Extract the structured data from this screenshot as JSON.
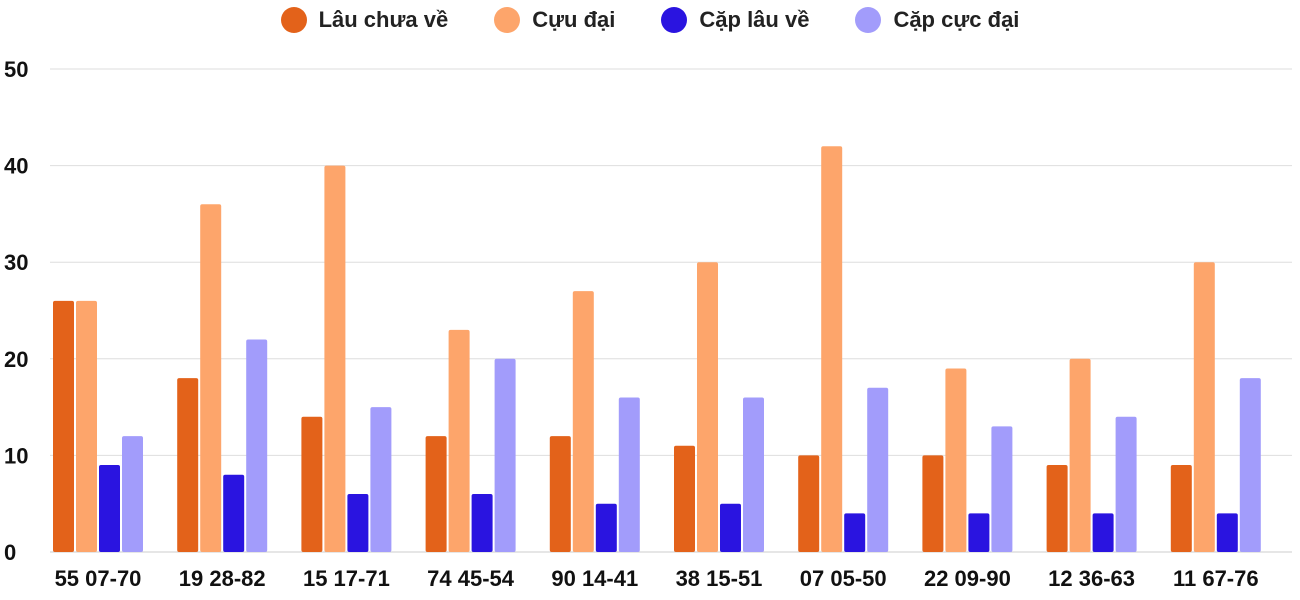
{
  "chart_data": {
    "type": "bar",
    "title": "",
    "xlabel": "",
    "ylabel": "",
    "ylim": [
      0,
      50
    ],
    "yticks": [
      0,
      10,
      20,
      30,
      40,
      50
    ],
    "grid": true,
    "legend_position": "top",
    "categories": [
      "55 07-70",
      "19 28-82",
      "15 17-71",
      "74 45-54",
      "90 14-41",
      "38 15-51",
      "07 05-50",
      "22 09-90",
      "12 36-63",
      "11 67-76"
    ],
    "series": [
      {
        "name": "Lâu chưa về",
        "color": "#e3621a",
        "values": [
          26,
          18,
          14,
          12,
          12,
          11,
          10,
          10,
          9,
          9
        ]
      },
      {
        "name": "Cựu đại",
        "color": "#fda56b",
        "values": [
          26,
          36,
          40,
          23,
          27,
          30,
          42,
          19,
          20,
          30
        ]
      },
      {
        "name": "Cặp lâu về",
        "color": "#2a14e0",
        "values": [
          9,
          8,
          6,
          6,
          5,
          5,
          4,
          4,
          4,
          4
        ]
      },
      {
        "name": "Cặp cực đại",
        "color": "#a29cfb",
        "values": [
          12,
          22,
          15,
          20,
          16,
          16,
          17,
          13,
          14,
          18
        ]
      }
    ]
  }
}
